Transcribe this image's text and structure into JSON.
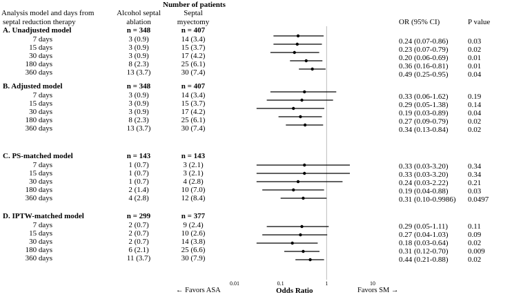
{
  "header": {
    "number_of_patients": "Number of patients",
    "analysis_col_line1": "Analysis model and days from",
    "analysis_col_line2": "septal reduction therapy",
    "asa_line1": "Alcohol septal",
    "asa_line2": "ablation",
    "sm_line1": "Septal",
    "sm_line2": "myectomy",
    "or_col": "OR (95% CI)",
    "p_col": "P value"
  },
  "sections": [
    {
      "title": "A. Unadjusted model",
      "n_asa": "n = 348",
      "n_sm": "n = 407",
      "rows": [
        {
          "label": "7 days",
          "asa": "3 (0.9)",
          "sm": "14 (3.4)",
          "or_text": "0.24 (0.07-0.86)",
          "p": "0.03"
        },
        {
          "label": "15 days",
          "asa": "3 (0.9)",
          "sm": "15 (3.7)",
          "or_text": "0.23 (0.07-0.79)",
          "p": "0.02"
        },
        {
          "label": "30 days",
          "asa": "3 (0.9)",
          "sm": "17 (4.2)",
          "or_text": "0.20 (0.06-0.69)",
          "p": "0.01"
        },
        {
          "label": "180 days",
          "asa": "8 (2.3)",
          "sm": "25 (6.1)",
          "or_text": "0.36 (0.16-0.81)",
          "p": "0.01"
        },
        {
          "label": "360 days",
          "asa": "13 (3.7)",
          "sm": "30 (7.4)",
          "or_text": "0.49 (0.25-0.95)",
          "p": "0.04"
        }
      ]
    },
    {
      "title": "B. Adjusted model",
      "n_asa": "n = 348",
      "n_sm": "n = 407",
      "rows": [
        {
          "label": "7 days",
          "asa": "3 (0.9)",
          "sm": "14 (3.4)",
          "or_text": "0.33 (0.06-1.62)",
          "p": "0.19"
        },
        {
          "label": "15 days",
          "asa": "3 (0.9)",
          "sm": "15 (3.7)",
          "or_text": "0.29 (0.05-1.38)",
          "p": "0.14"
        },
        {
          "label": "30 days",
          "asa": "3 (0.9)",
          "sm": "17 (4.2)",
          "or_text": "0.19 (0.03-0.89)",
          "p": "0.04"
        },
        {
          "label": "180 days",
          "asa": "8 (2.3)",
          "sm": "25 (6.1)",
          "or_text": "0.27 (0.09-0.79)",
          "p": "0.02"
        },
        {
          "label": "360 days",
          "asa": "13 (3.7)",
          "sm": "30 (7.4)",
          "or_text": "0.34 (0.13-0.84)",
          "p": "0.02"
        }
      ]
    },
    {
      "title": "C. PS-matched model",
      "n_asa": "n = 143",
      "n_sm": "n = 143",
      "rows": [
        {
          "label": "7 days",
          "asa": "1 (0.7)",
          "sm": "3 (2.1)",
          "or_text": "0.33 (0.03-3.20)",
          "p": "0.34"
        },
        {
          "label": "15 days",
          "asa": "1 (0.7)",
          "sm": "3 (2.1)",
          "or_text": "0.33 (0.03-3.20)",
          "p": "0.34"
        },
        {
          "label": "30 days",
          "asa": "1 (0.7)",
          "sm": "4 (2.8)",
          "or_text": "0.24 (0.03-2.22)",
          "p": "0.21"
        },
        {
          "label": "180 days",
          "asa": "2 (1.4)",
          "sm": "10 (7.0)",
          "or_text": "0.19 (0.04-0.88)",
          "p": "0.03"
        },
        {
          "label": "360 days",
          "asa": "4 (2.8)",
          "sm": "12 (8.4)",
          "or_text": "0.31 (0.10-0.9986)",
          "p": "0.0497"
        }
      ]
    },
    {
      "title": "D. IPTW-matched model",
      "n_asa": "n = 299",
      "n_sm": "n = 377",
      "rows": [
        {
          "label": "7 days",
          "asa": "2 (0.7)",
          "sm": "9 (2.4)",
          "or_text": "0.29 (0.05-1.11)",
          "p": "0.11"
        },
        {
          "label": "15 days",
          "asa": "2 (0.7)",
          "sm": "10 (2.6)",
          "or_text": "0.27 (0.04-1.03)",
          "p": "0.09"
        },
        {
          "label": "30 days",
          "asa": "2 (0.7)",
          "sm": "14 (3.8)",
          "or_text": "0.18 (0.03-0.64)",
          "p": "0.02"
        },
        {
          "label": "180 days",
          "asa": "6 (2.1)",
          "sm": "25 (6.6)",
          "or_text": "0.31 (0.12-0.70)",
          "p": "0.009"
        },
        {
          "label": "360 days",
          "asa": "11 (3.7)",
          "sm": "30 (7.9)",
          "or_text": "0.44 (0.21-0.88)",
          "p": "0.02"
        }
      ]
    }
  ],
  "chart_data": {
    "type": "scatter",
    "xscale": "log",
    "xlim": [
      0.01,
      10
    ],
    "xticks": [
      0.01,
      0.1,
      1,
      10
    ],
    "xtick_labels": [
      "0.01",
      "0.1",
      "1",
      "10"
    ],
    "reference_line": 1,
    "grid": false,
    "xlabel": "Odds Ratio",
    "left_annotation": "← Favors ASA",
    "right_annotation": "Favors SM →",
    "series": [
      {
        "or": [
          0.24,
          0.23,
          0.2,
          0.36,
          0.49
        ],
        "lower": [
          0.07,
          0.07,
          0.06,
          0.16,
          0.25
        ],
        "upper": [
          0.86,
          0.79,
          0.69,
          0.81,
          0.95
        ]
      },
      {
        "or": [
          0.33,
          0.29,
          0.19,
          0.27,
          0.34
        ],
        "lower": [
          0.06,
          0.05,
          0.03,
          0.09,
          0.13
        ],
        "upper": [
          1.62,
          1.38,
          0.89,
          0.79,
          0.84
        ]
      },
      {
        "or": [
          0.33,
          0.33,
          0.24,
          0.19,
          0.31
        ],
        "lower": [
          0.03,
          0.03,
          0.03,
          0.04,
          0.1
        ],
        "upper": [
          3.2,
          3.2,
          2.22,
          0.88,
          0.9986
        ]
      },
      {
        "or": [
          0.29,
          0.27,
          0.18,
          0.31,
          0.44
        ],
        "lower": [
          0.05,
          0.04,
          0.03,
          0.12,
          0.21
        ],
        "upper": [
          1.11,
          1.03,
          0.64,
          0.7,
          0.88
        ]
      }
    ]
  }
}
